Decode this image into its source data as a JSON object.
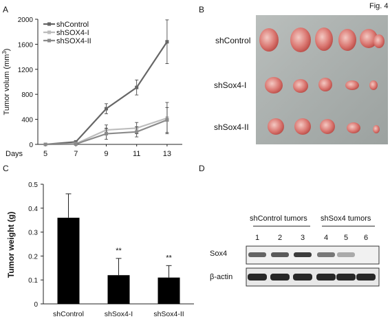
{
  "figure_label": "Fig. 4",
  "panels": {
    "A": {
      "letter": "A"
    },
    "B": {
      "letter": "B",
      "row_labels": [
        "shControl",
        "shSox4-I",
        "shSox4-II"
      ]
    },
    "C": {
      "letter": "C"
    },
    "D": {
      "letter": "D",
      "group_labels": [
        "shControl tumors",
        "shSox4 tumors"
      ],
      "lane_numbers": [
        "1",
        "2",
        "3",
        "4",
        "5",
        "6"
      ],
      "row_labels": [
        "Sox4",
        "β-actin"
      ],
      "sox4_intensity": [
        0.65,
        0.7,
        0.85,
        0.55,
        0.3,
        0.0
      ],
      "actin_intensity": [
        0.95,
        0.95,
        0.95,
        0.95,
        0.95,
        0.95
      ]
    }
  },
  "chart_data": [
    {
      "type": "line",
      "panel": "A",
      "title": "",
      "xlabel": "Days",
      "ylabel": "Tumor volum (mm3)",
      "x": [
        5,
        7,
        9,
        11,
        13
      ],
      "xticks": [
        "5",
        "7",
        "9",
        "11",
        "13"
      ],
      "yticks": [
        "0",
        "400",
        "800",
        "1200",
        "1600",
        "2000"
      ],
      "ylim": [
        0,
        2000
      ],
      "legend_position": "top-left",
      "series": [
        {
          "name": "shControl",
          "color": "#666666",
          "values": [
            0,
            40,
            570,
            910,
            1640
          ],
          "err": [
            0,
            20,
            80,
            120,
            350
          ]
        },
        {
          "name": "shSOX4-I",
          "color": "#bdbdbd",
          "values": [
            0,
            10,
            230,
            260,
            420
          ],
          "err": [
            0,
            10,
            80,
            90,
            250
          ]
        },
        {
          "name": "shSOX4-II",
          "color": "#8a8a8a",
          "values": [
            0,
            5,
            170,
            200,
            390
          ],
          "err": [
            0,
            5,
            90,
            80,
            200
          ]
        }
      ]
    },
    {
      "type": "bar",
      "panel": "C",
      "title": "",
      "xlabel": "",
      "ylabel": "Tumor weight (g)",
      "categories": [
        "shControl",
        "shSox4-I",
        "shSox4-II"
      ],
      "values": [
        0.36,
        0.12,
        0.11
      ],
      "err": [
        0.1,
        0.07,
        0.05
      ],
      "annotations": [
        "",
        "**",
        "**"
      ],
      "yticks": [
        "0",
        "0.1",
        "0.2",
        "0.3",
        "0.4",
        "0.5"
      ],
      "ylim": [
        0,
        0.5
      ],
      "bar_color": "#000000"
    }
  ]
}
